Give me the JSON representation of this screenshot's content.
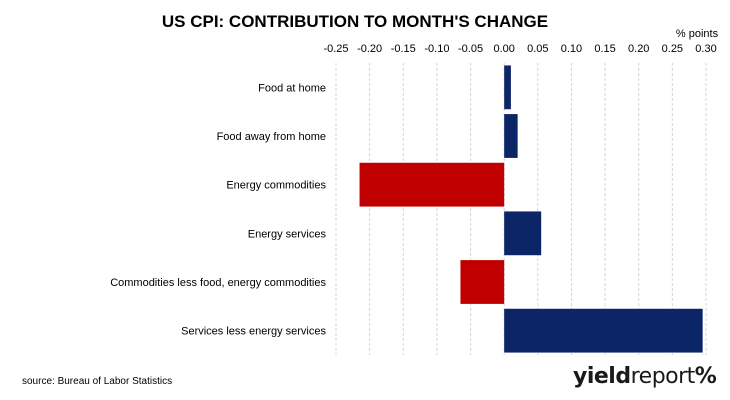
{
  "chart_data": {
    "type": "bar",
    "orientation": "horizontal",
    "title": "US CPI: CONTRIBUTION TO MONTH'S CHANGE",
    "unit_label": "% points",
    "xlim": [
      -0.25,
      0.3
    ],
    "xticks": [
      "-0.25",
      "-0.20",
      "-0.15",
      "-0.10",
      "-0.05",
      "0.00",
      "0.05",
      "0.10",
      "0.15",
      "0.20",
      "0.25",
      "0.30"
    ],
    "grid": true,
    "categories": [
      "Food at home",
      "Food away from home",
      "Energy commodities",
      "Energy services",
      "Commodities less food, energy commodities",
      "Services less energy services"
    ],
    "values": [
      0.01,
      0.02,
      -0.215,
      0.055,
      -0.065,
      0.295
    ],
    "colors": {
      "positive": "#0b2566",
      "negative": "#c00000",
      "grid": "#d4d4d4"
    }
  },
  "footer": {
    "source": "source: Bureau of Labor Statistics",
    "logo_yield": "yield",
    "logo_report": "report",
    "logo_pct": "%"
  }
}
